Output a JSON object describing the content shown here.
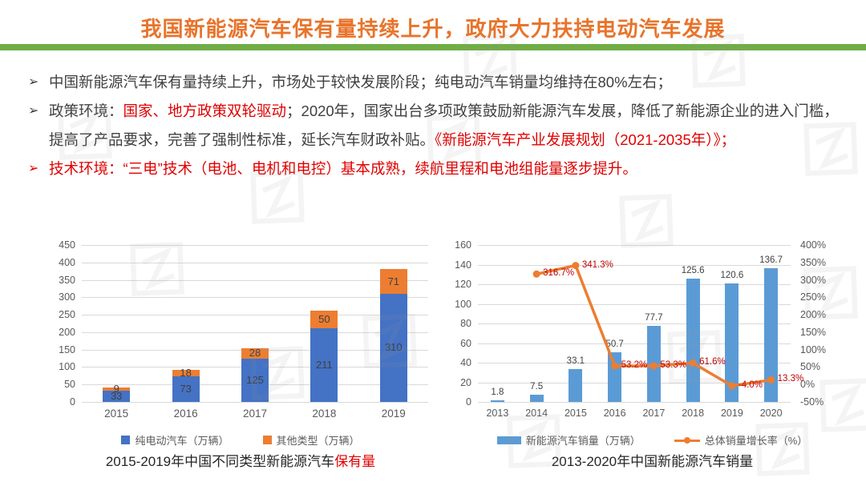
{
  "header": {
    "title": "我国新能源汽车保有量持续上升，政府大力扶持电动汽车发展"
  },
  "colors": {
    "title": "#E8742C",
    "divider": "#70AD47",
    "text": "#3F3F3F",
    "red": "#E00000",
    "axis": "#595959",
    "grid": "#D9D9D9",
    "caption_text": "#262626",
    "line_label_red": "#C00000"
  },
  "bullets": [
    {
      "marker": "➢",
      "marker_color": "#3F3F3F",
      "segments": [
        {
          "text": "中国新能源汽车保有量持续上升，市场处于较快发展阶段；纯电动汽车销量均维持在80%左右；",
          "color": "#3F3F3F"
        }
      ]
    },
    {
      "marker": "➢",
      "marker_color": "#3F3F3F",
      "segments": [
        {
          "text": "政策环境：",
          "color": "#3F3F3F"
        },
        {
          "text": "国家、地方政策双轮驱动",
          "color": "#E00000"
        },
        {
          "text": "；2020年，国家出台多项政策鼓励新能源汽车发展，降低了新能源企业的进入门槛，提高了产品要求，完善了强制性标准，延长汽车财政补贴。",
          "color": "#3F3F3F"
        },
        {
          "text": "《新能源汽车产业发展规划（2021-2035年）》；",
          "color": "#E00000"
        }
      ]
    },
    {
      "marker": "➢",
      "marker_color": "#E00000",
      "segments": [
        {
          "text": "技术环境：“三电”技术（电池、电机和电控）基本成熟，续航里程和电池组能量逐步提升。",
          "color": "#E00000"
        }
      ]
    }
  ],
  "chart_data": [
    {
      "type": "bar",
      "stacked": true,
      "categories": [
        "2015",
        "2016",
        "2017",
        "2018",
        "2019"
      ],
      "series": [
        {
          "name": "纯电动汽车（万辆）",
          "color": "#4472C4",
          "values": [
            33,
            73,
            125,
            211,
            310
          ]
        },
        {
          "name": "其他类型（万辆）",
          "color": "#ED7D31",
          "values": [
            9,
            18,
            28,
            50,
            71
          ]
        }
      ],
      "ylim": [
        0,
        450
      ],
      "yticks": [
        0,
        50,
        100,
        150,
        200,
        250,
        300,
        350,
        400,
        450
      ],
      "grid": true,
      "legend_position": "bottom",
      "caption_segments": [
        {
          "text": "2015-2019年中国不同类型新能源汽车",
          "color": "#262626"
        },
        {
          "text": "保有量",
          "color": "#E00000"
        }
      ]
    },
    {
      "type": "bar+line",
      "categories": [
        "2013",
        "2014",
        "2015",
        "2016",
        "2017",
        "2018",
        "2019",
        "2020"
      ],
      "bar_series": {
        "name": "新能源汽车销量（万辆）",
        "color": "#5B9BD5",
        "values": [
          1.8,
          7.5,
          33.1,
          50.7,
          77.7,
          125.6,
          120.6,
          136.7
        ],
        "labels": [
          "1.8",
          "7.5",
          "33.1",
          "50.7",
          "77.7",
          "125.6",
          "120.6",
          "136.7"
        ]
      },
      "line_series": {
        "name": "总体销量增长率（%）",
        "color": "#ED7D31",
        "label_color": "#C00000",
        "values": [
          null,
          316.7,
          341.3,
          53.2,
          53.3,
          61.6,
          -4.0,
          13.3
        ],
        "labels": [
          "",
          "316.7%",
          "341.3%",
          "53.2%",
          "53.3%",
          "61.6%",
          "-4.0%",
          "13.3%"
        ]
      },
      "ylim_left": [
        0,
        160
      ],
      "yticks_left": [
        0,
        20,
        40,
        60,
        80,
        100,
        120,
        140,
        160
      ],
      "ylim_right": [
        -50,
        400
      ],
      "yticks_right": [
        "400%",
        "350%",
        "300%",
        "250%",
        "200%",
        "150%",
        "100%",
        "50%",
        "0%",
        "-50%"
      ],
      "grid": true,
      "legend_position": "bottom",
      "caption_segments": [
        {
          "text": "2013-2020年中国新能源汽车销量",
          "color": "#262626"
        }
      ]
    }
  ],
  "watermark": {
    "icon": "iz-logo-watermark"
  }
}
